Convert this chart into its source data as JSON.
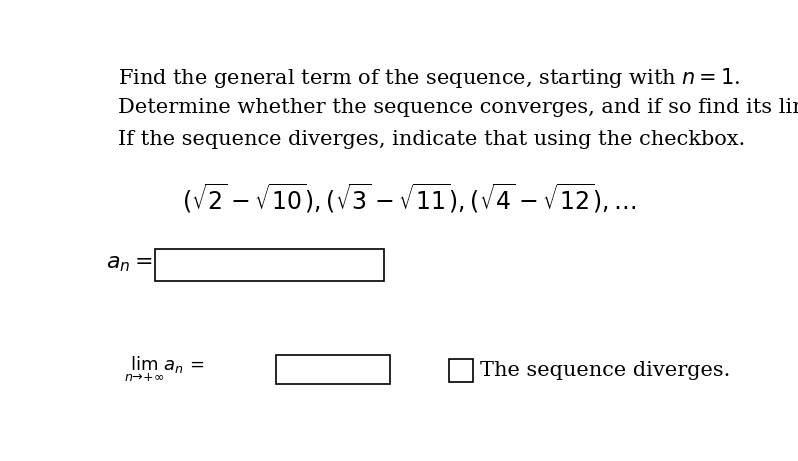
{
  "background_color": "#ffffff",
  "line1": "Find the general term of the sequence, starting with $n = 1$.",
  "line2": "Determine whether the sequence converges, and if so find its limit.",
  "line3": "If the sequence diverges, indicate that using the checkbox.",
  "sequence_expr": "$(\\sqrt{2} - \\sqrt{10}), (\\sqrt{3} - \\sqrt{11}), (\\sqrt{4} - \\sqrt{12}), \\ldots$",
  "an_label": "$a_n =$",
  "lim_label": "$\\lim_{n\\to+\\infty} a_n =$",
  "diverges_label": "The sequence diverges.",
  "text_color": "#000000",
  "box_color": "#000000",
  "fontsize_body": 15,
  "fontsize_seq": 17,
  "fontsize_an": 16,
  "fontsize_lim": 13,
  "fontsize_diverges": 15
}
